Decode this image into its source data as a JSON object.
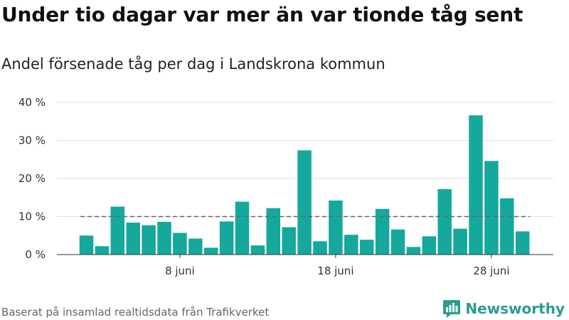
{
  "title": "Under tio dagar var mer än var tionde tåg sent",
  "subtitle": "Andel försenade tåg per dag i Landskrona kommun",
  "footer": "Baserat på insamlad realtidsdata från Trafikverket",
  "brand": {
    "name": "Newsworthy",
    "icon": "newsworthy-logo-icon",
    "color": "#2a9d8f"
  },
  "chart_data": {
    "type": "bar",
    "unit": "%",
    "x_start_day": 2,
    "values": [
      5.0,
      2.2,
      12.6,
      8.4,
      7.7,
      8.6,
      5.7,
      4.2,
      1.8,
      8.7,
      13.9,
      2.4,
      12.2,
      7.2,
      27.4,
      3.5,
      14.2,
      5.2,
      3.9,
      12.0,
      6.6,
      2.0,
      4.8,
      17.2,
      6.8,
      36.6,
      24.6,
      14.8,
      6.1
    ],
    "reference_line": 10,
    "ylim": [
      0,
      40
    ],
    "yticks": [
      {
        "value": 0,
        "label": "0 %"
      },
      {
        "value": 10,
        "label": "10 %"
      },
      {
        "value": 20,
        "label": "20 %"
      },
      {
        "value": 30,
        "label": "30 %"
      },
      {
        "value": 40,
        "label": "40 %"
      }
    ],
    "xticks": [
      {
        "day": 8,
        "label": "8 juni"
      },
      {
        "day": 18,
        "label": "18 juni"
      },
      {
        "day": 28,
        "label": "28 juni"
      }
    ],
    "bar_color": "#15a89c",
    "grid": true
  }
}
